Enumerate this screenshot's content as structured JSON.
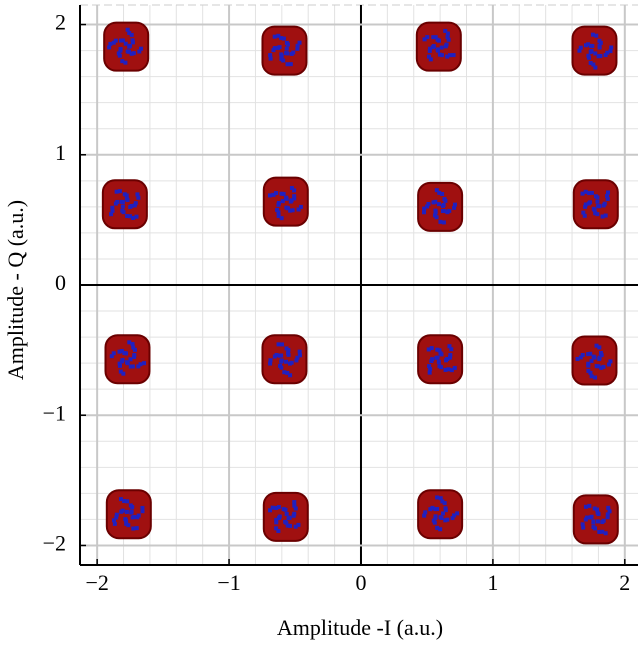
{
  "chart_data": {
    "type": "scatter",
    "xlabel": "Amplitude -I (a.u.)",
    "ylabel": "Amplitude - Q (a.u.)",
    "xlim": [
      -2.13,
      2.1
    ],
    "ylim": [
      -2.15,
      2.15
    ],
    "xticks": [
      {
        "value": -2,
        "label": "−2"
      },
      {
        "value": -1,
        "label": "−1"
      },
      0,
      1,
      2
    ],
    "yticks": [
      {
        "value": -2,
        "label": "−2"
      },
      {
        "value": -1,
        "label": "−1"
      },
      0,
      1,
      2
    ],
    "grid": true,
    "series": [
      {
        "color": "#a01010",
        "x": [
          -1.78,
          -0.58,
          0.59,
          1.77,
          -1.79,
          -0.57,
          0.6,
          1.78,
          -1.77,
          -0.58,
          0.6,
          1.77,
          -1.76,
          -0.57,
          0.6,
          1.78
        ],
        "y": [
          1.83,
          1.8,
          1.83,
          1.8,
          0.62,
          0.64,
          0.6,
          0.62,
          -0.57,
          -0.57,
          -0.57,
          -0.58,
          -1.76,
          -1.78,
          -1.76,
          -1.8
        ]
      }
    ]
  }
}
